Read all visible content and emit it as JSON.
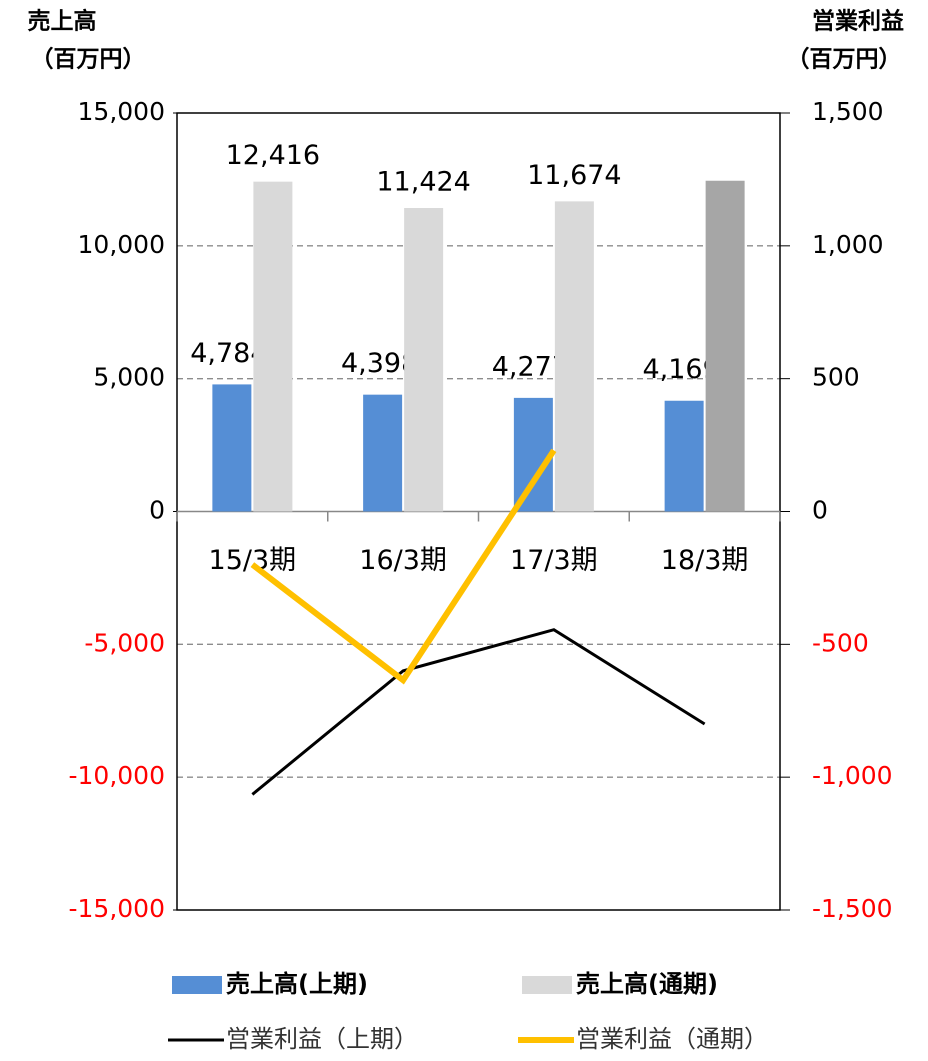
{
  "chart_data": {
    "type": "bar_line",
    "ylabel": [
      "売上高",
      "（百万円）"
    ],
    "y2label": [
      "営業利益",
      "（百万円）"
    ],
    "categories": [
      "15/3期",
      "16/3期",
      "17/3期",
      "18/3期"
    ],
    "ylim": [
      -15000,
      15000
    ],
    "yticks": [
      {
        "value": 15000,
        "label": "15,000"
      },
      {
        "value": 10000,
        "label": "10,000"
      },
      {
        "value": 5000,
        "label": "5,000"
      },
      0,
      {
        "value": -5000,
        "label": "-5,000"
      },
      {
        "value": -10000,
        "label": "-10,000"
      },
      {
        "value": -15000,
        "label": "-15,000"
      }
    ],
    "y2lim": [
      -1500,
      1500
    ],
    "y2ticks": [
      {
        "value": 1500,
        "label": "1,500"
      },
      {
        "value": 1000,
        "label": "1,000"
      },
      500,
      0,
      -500,
      {
        "value": -1000,
        "label": "-1,000"
      },
      {
        "value": -1500,
        "label": "-1,500"
      }
    ],
    "negative_tick_color": "#ff0000",
    "grid": true,
    "series": [
      {
        "name": "売上高(上期)",
        "type": "bar",
        "color": "#558ed5",
        "values": [
          4784,
          4398,
          4277,
          4169
        ],
        "value_labels": [
          "4,784",
          "4,398",
          "4,277",
          "4,169"
        ]
      },
      {
        "name": "売上高(通期)",
        "type": "bar",
        "color": "#d9d9d9",
        "colors": [
          "#d9d9d9",
          "#d9d9d9",
          "#d9d9d9",
          "#a6a6a6"
        ],
        "values": [
          12416,
          11424,
          11674,
          12450
        ],
        "value_labels": [
          "12,416",
          "11,424",
          "11,674",
          null
        ]
      },
      {
        "name": "営業利益（上期）",
        "type": "line",
        "axis": "y2",
        "color": "#000000",
        "values": [
          -1065,
          -600,
          -445,
          -800
        ]
      },
      {
        "name": "営業利益（通期）",
        "type": "line",
        "axis": "y2",
        "color": "#ffc000",
        "values": [
          -200,
          -635,
          230,
          null
        ]
      }
    ]
  }
}
